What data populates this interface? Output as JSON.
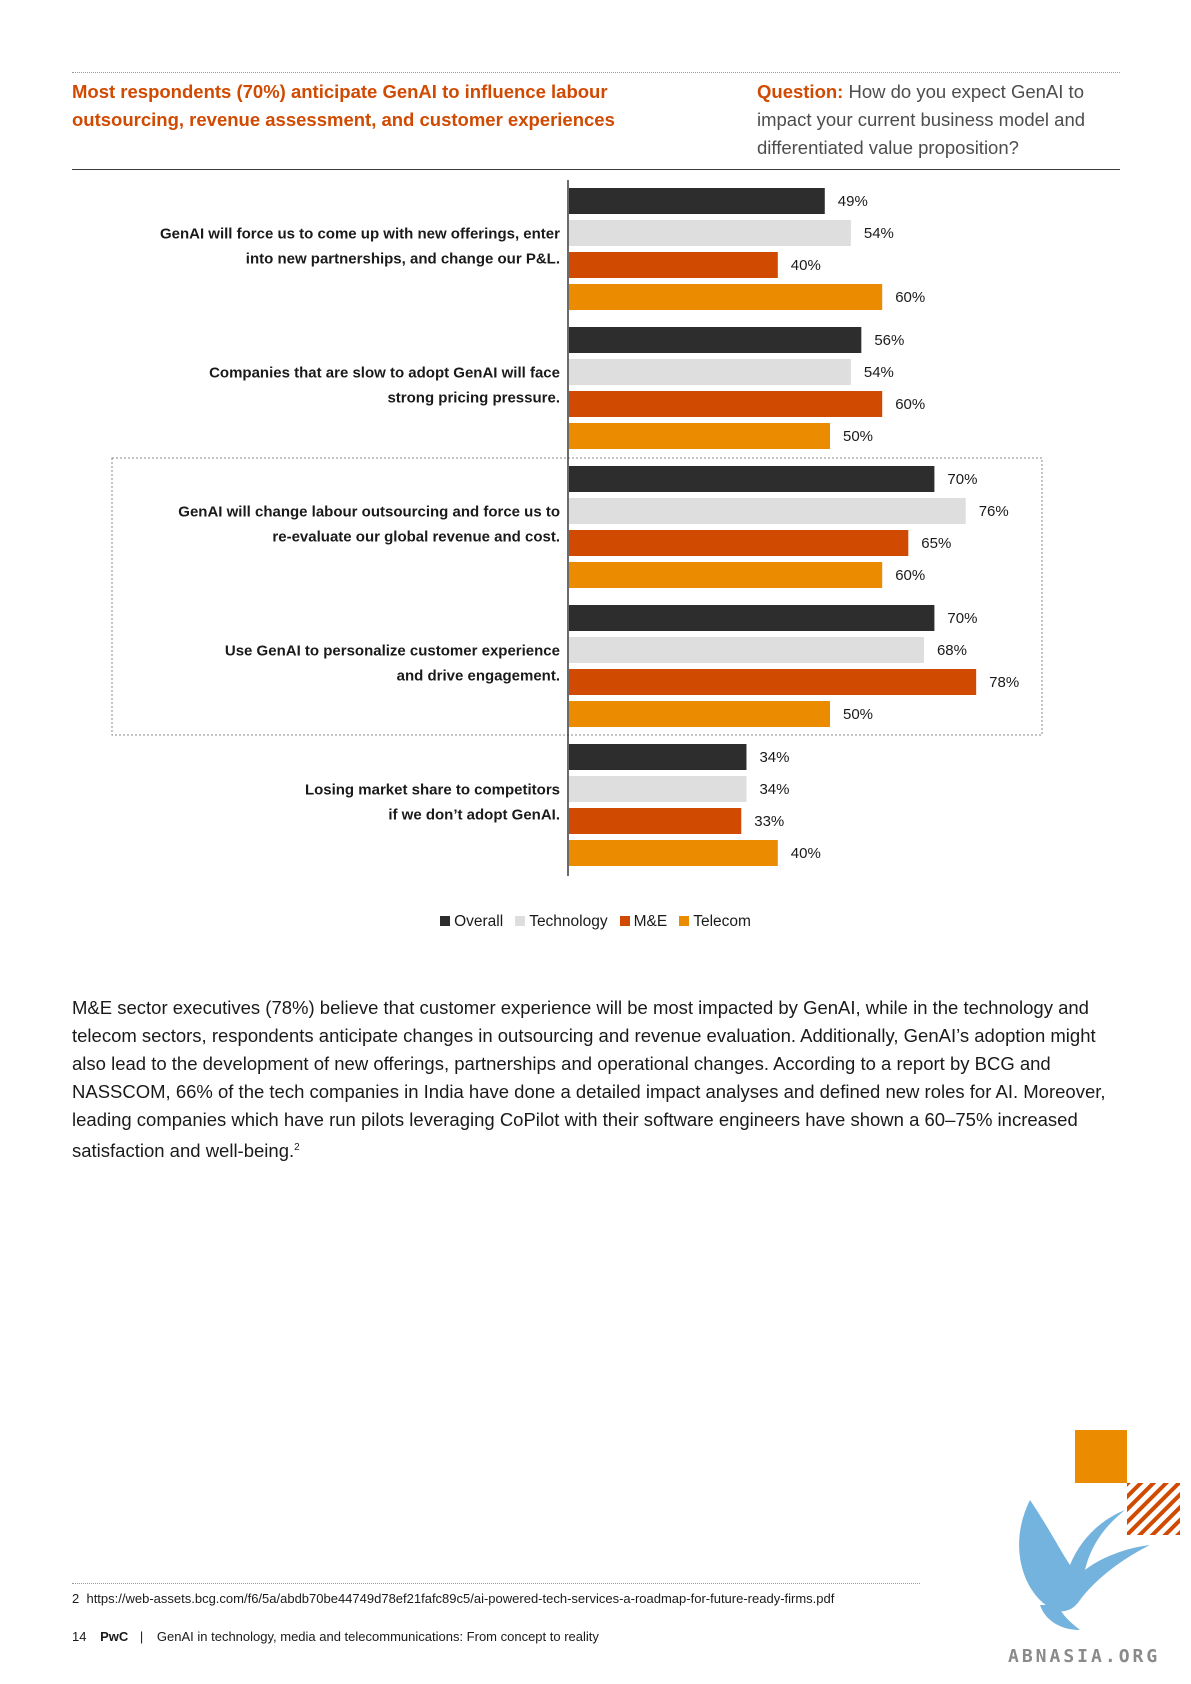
{
  "header": {
    "headline": "Most respondents (70%) anticipate GenAI to influence labour outsourcing, revenue assessment, and customer experiences",
    "question_label": "Question:",
    "question_text": "How do you expect GenAI to impact your current business model and differentiated value proposition?"
  },
  "chart_data": {
    "type": "bar",
    "orientation": "horizontal",
    "categories": [
      "GenAI will force us to come up with new offerings, enter into new partnerships, and change our P&L.",
      "Companies that are slow to adopt GenAI will face strong pricing pressure.",
      "GenAI will change labour outsourcing and force us to re-evaluate our global revenue and cost.",
      "Use GenAI to personalize customer experience and drive engagement.",
      "Losing market share to competitors if we don’t adopt GenAI."
    ],
    "category_lines": [
      [
        "GenAI will force us to come up with new offerings, enter",
        "into new partnerships, and change our P&L."
      ],
      [
        "Companies that are slow to adopt GenAI will face",
        "strong pricing pressure."
      ],
      [
        "GenAI will change labour outsourcing and force us to",
        "re-evaluate our global revenue and cost."
      ],
      [
        "Use GenAI to personalize customer experience",
        "and drive engagement."
      ],
      [
        "Losing market share to competitors",
        "if we don’t adopt GenAI."
      ]
    ],
    "series": [
      {
        "name": "Overall",
        "color": "#2d2d2d",
        "values": [
          49,
          56,
          70,
          70,
          34
        ]
      },
      {
        "name": "Technology",
        "color": "#dedede",
        "values": [
          54,
          54,
          76,
          68,
          34
        ]
      },
      {
        "name": "M&E",
        "color": "#d04a02",
        "values": [
          40,
          60,
          65,
          78,
          33
        ]
      },
      {
        "name": "Telecom",
        "color": "#eb8c00",
        "values": [
          60,
          50,
          60,
          50,
          40
        ]
      }
    ],
    "value_suffix": "%",
    "xlim": [
      0,
      100
    ],
    "highlighted_categories": [
      2,
      3
    ],
    "legend_position": "bottom-center",
    "grid": false
  },
  "body": {
    "paragraph": "M&E sector executives (78%) believe that customer experience will be most impacted by GenAI, while in the technology and telecom sectors, respondents anticipate changes in outsourcing and revenue evaluation. Additionally, GenAI’s adoption might also lead to the development of new offerings, partnerships and operational changes. According to a report by BCG and NASSCOM, 66% of the tech companies in India have done a detailed impact analyses and defined new roles for AI. Moreover, leading companies which have run pilots leveraging CoPilot with their software engineers have shown a 60–75% increased satisfaction and well-being.",
    "footnote_ref": "2"
  },
  "footnote": {
    "number": "2",
    "url": "https://web-assets.bcg.com/f6/5a/abdb70be44749d78ef21fafc89c5/ai-powered-tech-services-a-roadmap-for-future-ready-firms.pdf"
  },
  "footer": {
    "page": "14",
    "brand": "PwC",
    "separator": "|",
    "doc_title": "GenAI in technology, media and telecommunications: From concept to reality"
  },
  "watermark": {
    "text": "ABNASIA.ORG"
  },
  "decor": {
    "orange": "#eb8c00",
    "dark_orange": "#d04a02",
    "watermark_blue": "#5ba6d9"
  }
}
